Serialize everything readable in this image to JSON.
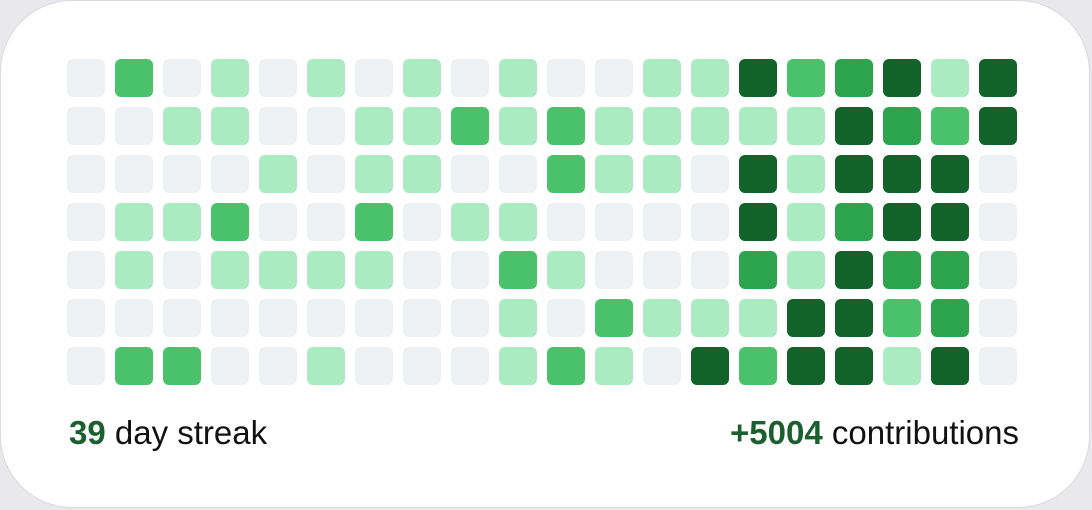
{
  "colors": {
    "levels": [
      "#eef1f4",
      "#abebc1",
      "#4ac26b",
      "#2da44e",
      "#116329"
    ],
    "accent": "#1a5f2d"
  },
  "contribution_grid": [
    [
      0,
      2,
      0,
      1,
      0,
      1,
      0,
      1,
      0,
      1,
      0,
      0,
      1,
      1,
      4,
      2,
      3,
      4,
      1,
      4
    ],
    [
      0,
      0,
      1,
      1,
      0,
      0,
      1,
      1,
      2,
      1,
      2,
      1,
      1,
      1,
      1,
      1,
      4,
      3,
      2,
      4
    ],
    [
      0,
      0,
      0,
      0,
      1,
      0,
      1,
      1,
      0,
      0,
      2,
      1,
      1,
      0,
      4,
      1,
      4,
      4,
      4,
      0
    ],
    [
      0,
      1,
      1,
      2,
      0,
      0,
      2,
      0,
      1,
      1,
      0,
      0,
      0,
      0,
      4,
      1,
      3,
      4,
      4,
      0
    ],
    [
      0,
      1,
      0,
      1,
      1,
      1,
      1,
      0,
      0,
      2,
      1,
      0,
      0,
      0,
      3,
      1,
      4,
      3,
      3,
      0
    ],
    [
      0,
      0,
      0,
      0,
      0,
      0,
      0,
      0,
      0,
      1,
      0,
      2,
      1,
      1,
      1,
      4,
      4,
      2,
      3,
      0
    ],
    [
      0,
      2,
      2,
      0,
      0,
      1,
      0,
      0,
      0,
      1,
      2,
      1,
      0,
      4,
      2,
      4,
      4,
      1,
      4,
      0
    ]
  ],
  "streak": {
    "value": "39",
    "label": "day streak"
  },
  "contributions": {
    "value": "+5004",
    "label": "contributions"
  }
}
